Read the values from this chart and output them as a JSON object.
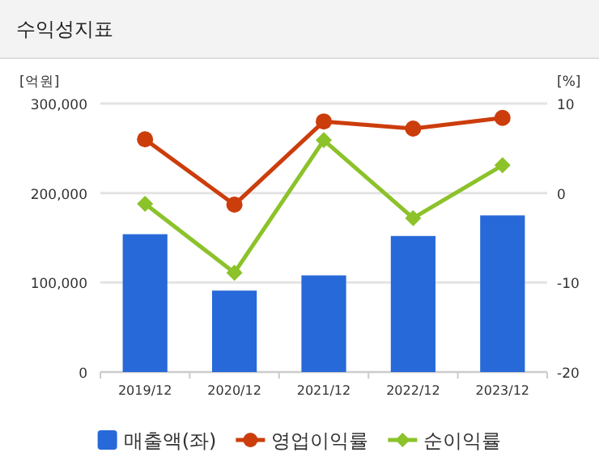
{
  "chart_data": {
    "type": "bar",
    "title": "수익성지표",
    "ylabel": "[억원]",
    "y2label": "[%]",
    "categories": [
      "2019/12",
      "2020/12",
      "2021/12",
      "2022/12",
      "2023/12"
    ],
    "series": [
      {
        "name": "매출액(좌)",
        "color": "#2769d8",
        "values": [
          154000,
          91000,
          108000,
          152000,
          175000
        ]
      },
      {
        "name": "영업이익률",
        "type": "line",
        "axis": "y2",
        "marker": "circle",
        "color": "#cc3d0c",
        "values": [
          6.0,
          -1.3,
          8.0,
          7.2,
          8.4
        ]
      },
      {
        "name": "순이익률",
        "type": "line",
        "axis": "y2",
        "marker": "diamond",
        "color": "#8cc22a",
        "values": [
          -1.2,
          -8.9,
          5.9,
          -2.8,
          3.1
        ]
      }
    ],
    "ylim": [
      0,
      300000
    ],
    "yticks": [
      {
        "value": 0,
        "label": "0"
      },
      {
        "value": 100000,
        "label": "100,000"
      },
      {
        "value": 200000,
        "label": "200,000"
      },
      {
        "value": 300000,
        "label": "300,000"
      }
    ],
    "y2lim": [
      -20,
      10
    ],
    "y2ticks": [
      -20,
      -10,
      0,
      10
    ],
    "grid": "y",
    "legend": "bottom"
  }
}
